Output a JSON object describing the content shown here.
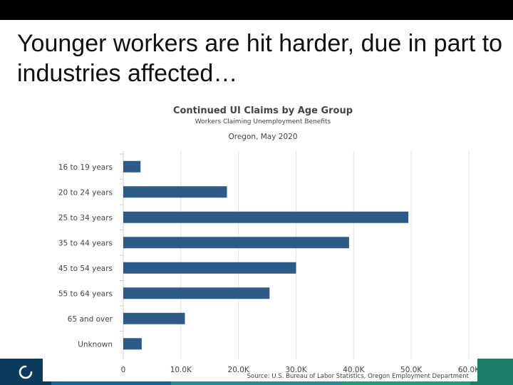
{
  "slide": {
    "title": "Younger workers are hit harder, due in part to industries affected…"
  },
  "colors": {
    "bar": "#2e5a88",
    "band": [
      "#0b3b5c",
      "#17668f",
      "#2a8a9a",
      "#1d9b7e",
      "#1a7f66"
    ],
    "band_underline": "#b8a15e"
  },
  "logo_icon": "circle-logo-icon",
  "chart_data": {
    "type": "bar",
    "orientation": "horizontal",
    "title": "Continued UI Claims by Age Group",
    "subtitle": "Workers Claiming Unemployment Benefits",
    "subtitle2": "Oregon, May 2020",
    "categories": [
      "16 to 19 years",
      "20 to 24 years",
      "25 to 34 years",
      "35 to 44 years",
      "45 to 54 years",
      "55 to 64 years",
      "65 and over",
      "Unknown"
    ],
    "values": [
      3000,
      18000,
      49500,
      39200,
      30000,
      25400,
      10700,
      3200
    ],
    "xlim": [
      0,
      60000
    ],
    "xticks": [
      "0",
      "10.0K",
      "20.0K",
      "30.0K",
      "40.0K",
      "50.0K",
      "60.0K"
    ],
    "grid": true,
    "source": "Source: U.S. Bureau of Labor Statistics, Oregon Employment Department"
  }
}
